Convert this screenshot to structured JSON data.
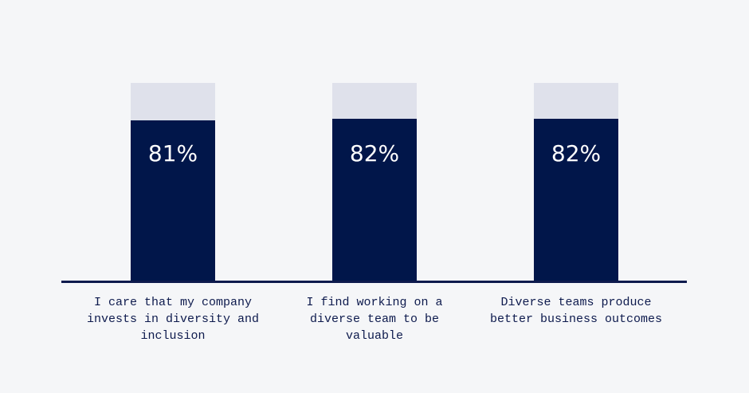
{
  "chart_data": {
    "type": "bar",
    "categories": [
      "I care that my company invests in diversity and inclusion",
      "I find working on a diverse team to be valuable",
      "Diverse teams produce better business outcomes"
    ],
    "values": [
      81,
      82,
      82
    ],
    "value_labels": [
      "81%",
      "82%",
      "82%"
    ],
    "color": "#01164a",
    "track_color": "#dfe1eb",
    "ylim": [
      0,
      100
    ]
  }
}
